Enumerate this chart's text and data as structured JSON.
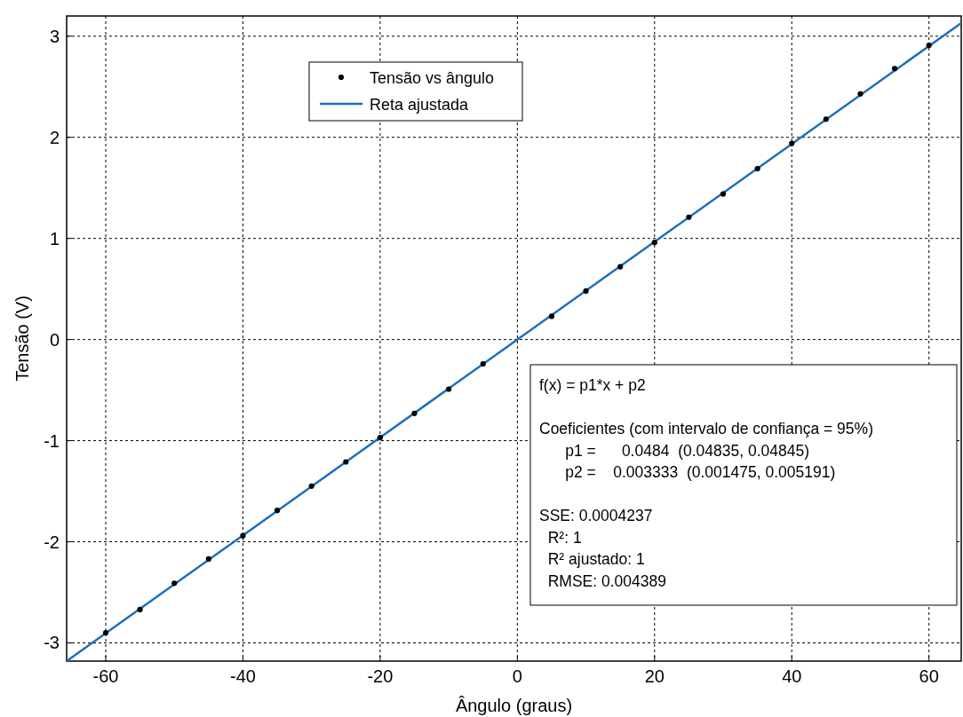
{
  "chart_data": {
    "type": "scatter",
    "xlabel": "Ângulo (graus)",
    "ylabel": "Tensão (V)",
    "xlim": [
      -65.7,
      64.7
    ],
    "ylim": [
      -3.18,
      3.2
    ],
    "xticks": [
      -60,
      -40,
      -20,
      0,
      20,
      40,
      60
    ],
    "yticks": [
      -3,
      -2,
      -1,
      0,
      1,
      2,
      3
    ],
    "grid": true,
    "legend": "top left",
    "series": [
      {
        "name": "Tensão vs ângulo",
        "marker": "circle",
        "color": "#000000",
        "x": [
          -60,
          -55,
          -50,
          -45,
          -40,
          -35,
          -30,
          -25,
          -20,
          -15,
          -10,
          -5,
          5,
          10,
          15,
          20,
          25,
          30,
          35,
          40,
          45,
          50,
          55,
          60
        ],
        "values": [
          -2.9,
          -2.67,
          -2.41,
          -2.17,
          -1.94,
          -1.69,
          -1.45,
          -1.21,
          -0.97,
          -0.73,
          -0.49,
          -0.24,
          0.23,
          0.48,
          0.72,
          0.96,
          1.21,
          1.44,
          1.69,
          1.94,
          2.18,
          2.43,
          2.68,
          2.91
        ]
      },
      {
        "name": "Reta ajustada",
        "type": "line",
        "line_style": "solid",
        "color": "#1a6fbd",
        "x": [
          -65.7,
          64.7
        ],
        "values": [
          -3.18,
          3.13
        ]
      }
    ],
    "annotations": [
      "f(x) = p1*x + p2",
      "Coeficientes (com intervalo de confiança = 95%)",
      "      p1 =      0.0484  (0.04835, 0.04845)",
      "      p2 =    0.003333  (0.001475, 0.005191)",
      "SSE: 0.0004237",
      "  R²: 1",
      "  R² ajustado: 1",
      "  RMSE: 0.004389"
    ]
  }
}
